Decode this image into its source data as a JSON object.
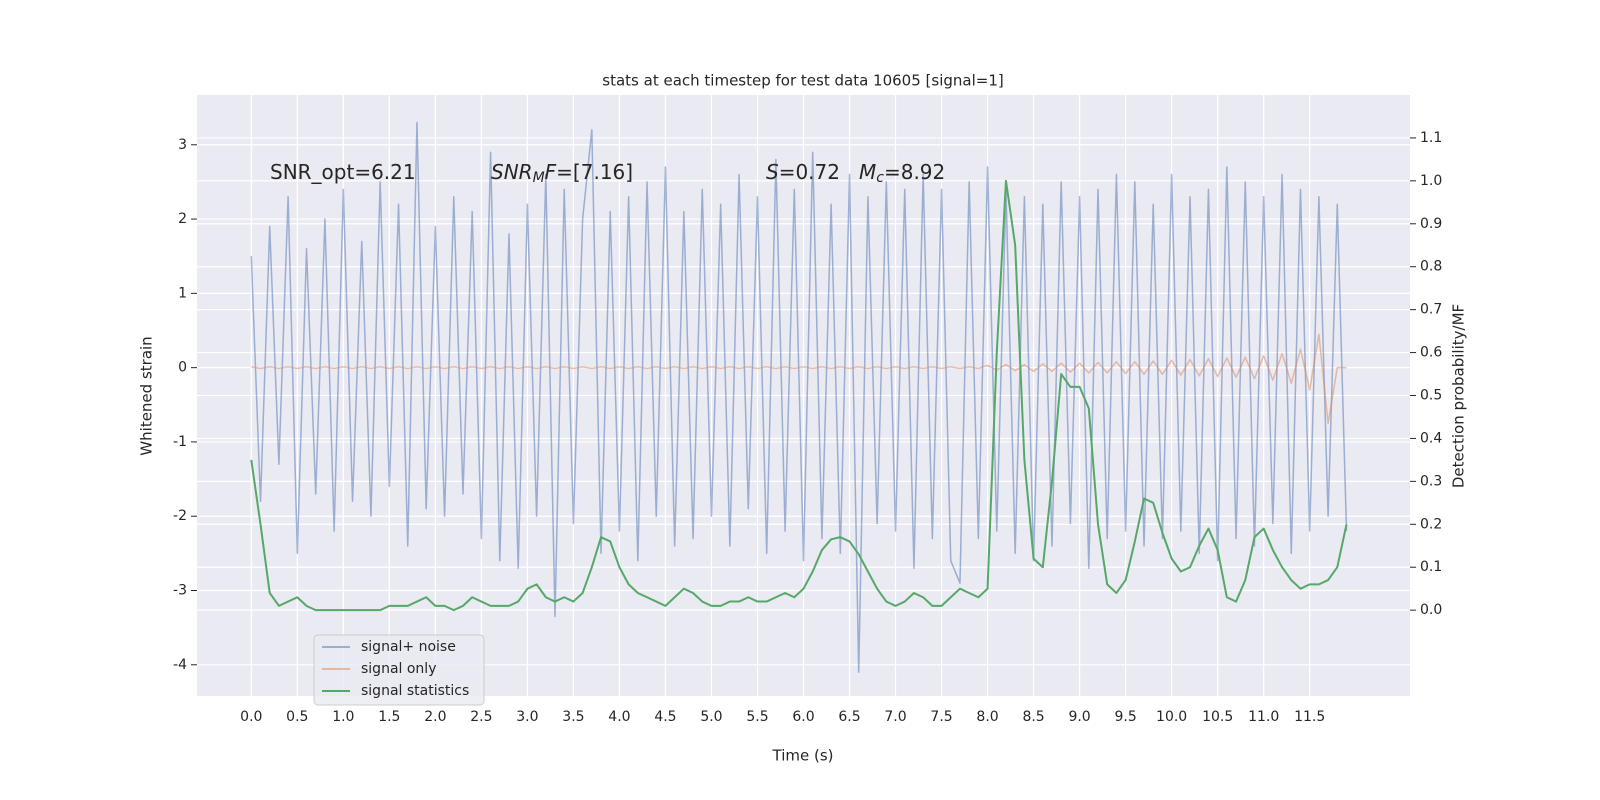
{
  "chart_data": {
    "type": "line",
    "title": "stats at each timestep for test data 10605 [signal=1]",
    "xlabel": "Time (s)",
    "ylabel": "Whitened strain",
    "y2label": "Detection probability/MF",
    "xlim": [
      -0.59,
      12.59
    ],
    "ylim": [
      -4.42,
      3.67
    ],
    "y2lim": [
      -0.2,
      1.2
    ],
    "xticks": [
      {
        "value": 0,
        "label": "0.0"
      },
      0.5,
      {
        "value": 1,
        "label": "1.0"
      },
      1.5,
      {
        "value": 2,
        "label": "2.0"
      },
      2.5,
      {
        "value": 3,
        "label": "3.0"
      },
      3.5,
      {
        "value": 4,
        "label": "4.0"
      },
      4.5,
      {
        "value": 5,
        "label": "5.0"
      },
      5.5,
      {
        "value": 6,
        "label": "6.0"
      },
      6.5,
      {
        "value": 7,
        "label": "7.0"
      },
      7.5,
      {
        "value": 8,
        "label": "8.0"
      },
      8.5,
      {
        "value": 9,
        "label": "9.0"
      },
      9.5,
      {
        "value": 10,
        "label": "10.0"
      },
      10.5,
      {
        "value": 11,
        "label": "11.0"
      },
      11.5
    ],
    "yticks": [
      -4,
      -3,
      -2,
      -1,
      0,
      1,
      2,
      3
    ],
    "y2ticks": [
      {
        "value": 0,
        "label": "0.0"
      },
      0.1,
      0.2,
      0.3,
      0.4,
      0.5,
      0.6,
      0.7,
      0.8,
      0.9,
      {
        "value": 1,
        "label": "1.0"
      },
      1.1
    ],
    "grid": true,
    "legend": "lower left",
    "annotations": [
      [
        {
          "text": "SNR_opt=6.21"
        }
      ],
      [
        {
          "text": "SNR",
          "style": "italic"
        },
        {
          "text": "M",
          "style": "sub"
        },
        {
          "text": "F",
          "style": "italic"
        },
        {
          "text": "=[7.16]"
        }
      ],
      [
        {
          "text": "S",
          "style": "italic"
        },
        {
          "text": "=0.72"
        }
      ],
      [
        {
          "text": "M",
          "style": "italic"
        },
        {
          "text": "c",
          "style": "sub"
        },
        {
          "text": "=8.92"
        }
      ]
    ],
    "x": [
      0,
      0.1,
      0.2,
      0.3,
      0.4,
      0.5,
      0.6,
      0.7,
      0.8,
      0.9,
      1,
      1.1,
      1.2,
      1.3,
      1.4,
      1.5,
      1.6,
      1.7,
      1.8,
      1.9,
      2,
      2.1,
      2.2,
      2.3,
      2.4,
      2.5,
      2.6,
      2.7,
      2.8,
      2.9,
      3,
      3.1,
      3.2,
      3.3,
      3.4,
      3.5,
      3.6,
      3.7,
      3.8,
      3.9,
      4,
      4.1,
      4.2,
      4.3,
      4.4,
      4.5,
      4.6,
      4.7,
      4.8,
      4.9,
      5,
      5.1,
      5.2,
      5.3,
      5.4,
      5.5,
      5.6,
      5.7,
      5.8,
      5.9,
      6,
      6.1,
      6.2,
      6.3,
      6.4,
      6.5,
      6.6,
      6.7,
      6.8,
      6.9,
      7,
      7.1,
      7.2,
      7.3,
      7.4,
      7.5,
      7.6,
      7.7,
      7.8,
      7.9,
      8,
      8.1,
      8.2,
      8.3,
      8.4,
      8.5,
      8.6,
      8.7,
      8.8,
      8.9,
      9,
      9.1,
      9.2,
      9.3,
      9.4,
      9.5,
      9.6,
      9.7,
      9.8,
      9.9,
      10,
      10.1,
      10.2,
      10.3,
      10.4,
      10.5,
      10.6,
      10.7,
      10.8,
      10.9,
      11,
      11.1,
      11.2,
      11.3,
      11.4,
      11.5,
      11.6,
      11.7,
      11.8,
      11.9
    ],
    "series": [
      {
        "name": "signal+ noise",
        "color": "#4c72b0",
        "alpha": 0.5,
        "axis": "y",
        "values": [
          1.5,
          -1.8,
          1.9,
          -1.3,
          2.3,
          -2.5,
          1.6,
          -1.7,
          2.0,
          -2.2,
          2.4,
          -1.8,
          1.7,
          -2.0,
          2.5,
          -1.6,
          2.2,
          -2.4,
          3.3,
          -1.9,
          1.9,
          -2.0,
          2.3,
          -1.7,
          2.1,
          -2.3,
          2.9,
          -2.6,
          1.8,
          -2.7,
          2.2,
          -2.0,
          2.6,
          -3.35,
          2.4,
          -2.1,
          2.0,
          3.2,
          -2.5,
          2.1,
          -2.2,
          2.3,
          -2.6,
          2.5,
          -2.0,
          2.7,
          -2.4,
          2.1,
          -2.3,
          2.4,
          -2.0,
          2.2,
          -2.4,
          2.6,
          -1.9,
          2.3,
          -2.5,
          2.8,
          -2.2,
          2.4,
          -2.6,
          2.9,
          -2.3,
          2.2,
          -2.5,
          2.6,
          -4.1,
          2.3,
          -2.1,
          2.5,
          -2.2,
          2.4,
          -2.7,
          2.6,
          -2.3,
          2.4,
          -2.6,
          -2.9,
          2.5,
          -2.3,
          2.7,
          -2.2,
          2.4,
          -2.5,
          2.3,
          -2.6,
          2.2,
          -2.4,
          2.5,
          -2.1,
          2.3,
          -2.7,
          2.4,
          -2.3,
          2.6,
          -2.2,
          2.5,
          -2.4,
          2.2,
          -2.3,
          2.6,
          -2.2,
          2.3,
          -2.5,
          2.4,
          -2.6,
          2.7,
          -2.3,
          2.5,
          -2.4,
          2.3,
          -2.1,
          2.6,
          -2.5,
          2.4,
          -2.2,
          2.3,
          -2.0,
          2.2,
          -2.2
        ]
      },
      {
        "name": "signal only",
        "color": "#dd8452",
        "alpha": 0.5,
        "axis": "y",
        "values": [
          0.01,
          -0.01,
          0.01,
          -0.01,
          0.01,
          -0.01,
          0.01,
          -0.01,
          0.01,
          -0.01,
          0.01,
          -0.01,
          0.01,
          -0.01,
          0.01,
          -0.01,
          0.01,
          -0.01,
          0.01,
          -0.01,
          0.01,
          -0.01,
          0.01,
          -0.01,
          0.01,
          -0.01,
          0.01,
          -0.01,
          0.01,
          -0.01,
          0.01,
          -0.01,
          0.01,
          -0.01,
          0.01,
          -0.01,
          0.01,
          -0.01,
          0.01,
          -0.01,
          0.01,
          -0.01,
          0.01,
          -0.01,
          0.01,
          -0.01,
          0.01,
          -0.01,
          0.01,
          -0.01,
          0.01,
          -0.01,
          0.01,
          -0.01,
          0.01,
          -0.01,
          0.01,
          -0.01,
          0.01,
          -0.01,
          0.01,
          -0.01,
          0.01,
          -0.01,
          0.01,
          -0.01,
          0.01,
          -0.01,
          0.01,
          -0.01,
          0.01,
          -0.01,
          0.01,
          -0.01,
          0.01,
          -0.01,
          0.01,
          -0.01,
          0.01,
          -0.01,
          0.03,
          -0.03,
          0.04,
          -0.04,
          0.04,
          -0.05,
          0.05,
          -0.05,
          0.06,
          -0.06,
          0.06,
          -0.07,
          0.07,
          -0.07,
          0.08,
          -0.08,
          0.08,
          -0.09,
          0.09,
          -0.09,
          0.1,
          -0.1,
          0.11,
          -0.11,
          0.12,
          -0.12,
          0.13,
          -0.13,
          0.14,
          -0.15,
          0.16,
          -0.17,
          0.19,
          -0.21,
          0.25,
          -0.3,
          0.45,
          -0.75,
          0,
          0
        ]
      },
      {
        "name": "signal statistics",
        "color": "#55a868",
        "alpha": 1,
        "axis": "y2",
        "values": [
          0.35,
          0.2,
          0.04,
          0.01,
          0.02,
          0.03,
          0.01,
          0,
          0,
          0,
          0,
          0,
          0,
          0,
          0,
          0.01,
          0.01,
          0.01,
          0.02,
          0.03,
          0.01,
          0.01,
          0,
          0.01,
          0.03,
          0.02,
          0.01,
          0.01,
          0.01,
          0.02,
          0.05,
          0.06,
          0.03,
          0.02,
          0.03,
          0.02,
          0.04,
          0.1,
          0.17,
          0.16,
          0.1,
          0.06,
          0.04,
          0.03,
          0.02,
          0.01,
          0.03,
          0.05,
          0.04,
          0.02,
          0.01,
          0.01,
          0.02,
          0.02,
          0.03,
          0.02,
          0.02,
          0.03,
          0.04,
          0.03,
          0.05,
          0.09,
          0.14,
          0.165,
          0.17,
          0.16,
          0.13,
          0.09,
          0.05,
          0.02,
          0.01,
          0.02,
          0.04,
          0.03,
          0.01,
          0.01,
          0.03,
          0.05,
          0.04,
          0.03,
          0.05,
          0.6,
          1.0,
          0.85,
          0.35,
          0.12,
          0.1,
          0.3,
          0.55,
          0.52,
          0.52,
          0.47,
          0.2,
          0.06,
          0.04,
          0.07,
          0.16,
          0.26,
          0.25,
          0.18,
          0.12,
          0.09,
          0.1,
          0.15,
          0.19,
          0.14,
          0.03,
          0.02,
          0.07,
          0.17,
          0.19,
          0.14,
          0.1,
          0.07,
          0.05,
          0.06,
          0.06,
          0.07,
          0.1,
          0.2
        ]
      }
    ]
  }
}
